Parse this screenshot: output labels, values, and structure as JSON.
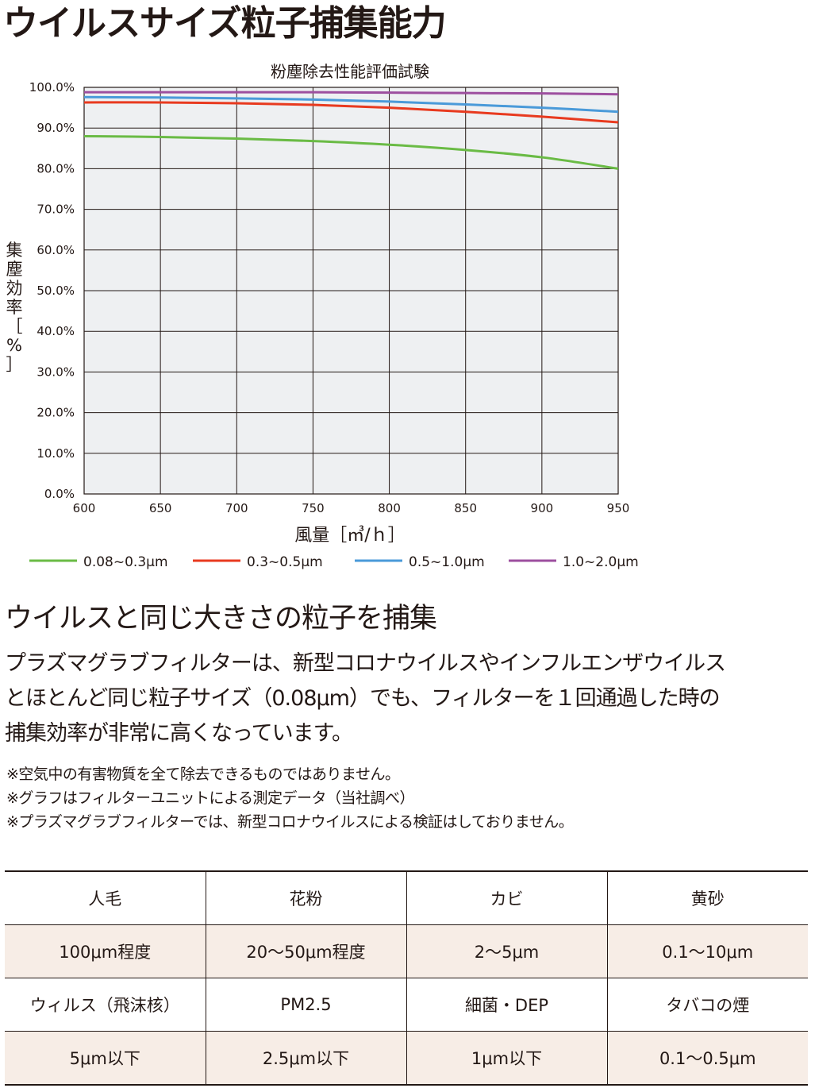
{
  "page": {
    "title": "ウイルスサイズ粒子捕集能力",
    "section_heading": "ウイルスと同じ大きさの粒子を捕集",
    "body_lines": [
      "プラズマグラブフィルターは、新型コロナウイルスやインフルエンザウイルス",
      "とほとんど同じ粒子サイズ（0.08μm）でも、フィルターを１回通過した時の",
      "捕集効率が非常に高くなっています。"
    ],
    "notes": [
      "※空気中の有害物質を全て除去できるものではありません。",
      "※グラフはフィルターユニットによる測定データ（当社調べ）",
      "※プラズマグラブフィルターでは、新型コロナウイルスによる検証はしておりません。"
    ]
  },
  "chart_data": {
    "type": "line",
    "title": "粉塵除去性能評価試験",
    "xlabel": "風量［㎥/ｈ］",
    "ylabel": "集塵効率［%］",
    "xlim": [
      600,
      950
    ],
    "ylim": [
      0,
      100
    ],
    "x_ticks": [
      "600",
      "650",
      "700",
      "750",
      "800",
      "850",
      "900",
      "950"
    ],
    "y_ticks": [
      "0.0%",
      "10.0%",
      "20.0%",
      "30.0%",
      "40.0%",
      "50.0%",
      "60.0%",
      "70.0%",
      "80.0%",
      "90.0%",
      "100.0%"
    ],
    "x": [
      600,
      650,
      700,
      750,
      800,
      850,
      900,
      950
    ],
    "grid": true,
    "legend_position": "bottom",
    "series": [
      {
        "name": "0.08~0.3μm",
        "color": "#6abb45",
        "values": [
          88.0,
          87.8,
          87.4,
          86.8,
          85.9,
          84.6,
          82.8,
          80.0
        ]
      },
      {
        "name": "0.3~0.5μm",
        "color": "#e83a1f",
        "values": [
          96.3,
          96.3,
          96.1,
          95.7,
          95.0,
          94.0,
          92.8,
          91.4
        ]
      },
      {
        "name": "0.5~1.0μm",
        "color": "#4a9ad9",
        "values": [
          97.6,
          97.5,
          97.3,
          97.0,
          96.5,
          95.8,
          95.0,
          94.0
        ]
      },
      {
        "name": "1.0~2.0μm",
        "color": "#9d4f9f",
        "values": [
          98.8,
          98.8,
          98.8,
          98.8,
          98.7,
          98.6,
          98.5,
          98.3
        ]
      }
    ]
  },
  "table": {
    "rows": [
      [
        "人毛",
        "花粉",
        "カビ",
        "黄砂"
      ],
      [
        "100μm程度",
        "20〜50μm程度",
        "2〜5μm",
        "0.1〜10μm"
      ],
      [
        "ウィルス（飛沫核）",
        "PM2.5",
        "細菌・DEP",
        "タバコの煙"
      ],
      [
        "5μm以下",
        "2.5μm以下",
        "1μm以下",
        "0.1〜0.5μm"
      ]
    ]
  },
  "colors": {
    "plot_background": "#eef0f2",
    "grid": "#231815",
    "table_shade": "#f7ede6"
  }
}
